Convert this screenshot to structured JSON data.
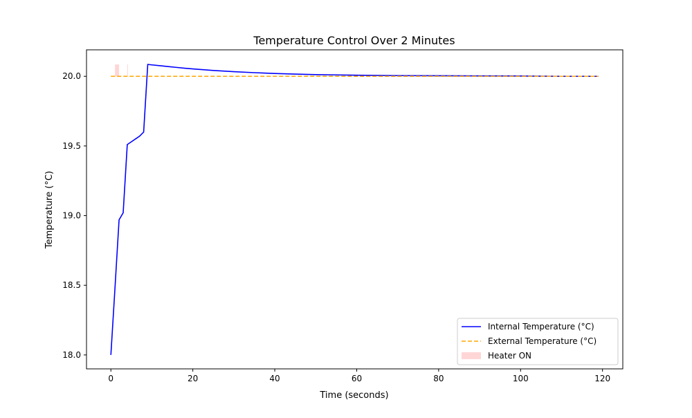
{
  "chart_data": {
    "type": "line",
    "title": "Temperature Control Over 2 Minutes",
    "xlabel": "Time (seconds)",
    "ylabel": "Temperature (°C)",
    "xlim": [
      -5.95,
      124.95
    ],
    "ylim": [
      17.9,
      20.19
    ],
    "x_ticks": [
      0,
      20,
      40,
      60,
      80,
      100,
      120
    ],
    "y_ticks": [
      18.0,
      18.5,
      19.0,
      19.5,
      20.0
    ],
    "x_tick_labels": [
      "0",
      "20",
      "40",
      "60",
      "80",
      "100",
      "120"
    ],
    "y_tick_labels": [
      "18.0",
      "18.5",
      "19.0",
      "19.5",
      "20.0"
    ],
    "grid": false,
    "legend_position": "lower-right",
    "series": [
      {
        "name": "Internal Temperature (°C)",
        "style": "solid",
        "color": "#0000ff",
        "x": [
          0,
          1,
          2,
          3,
          4,
          5,
          6,
          7,
          8,
          9,
          10,
          12,
          14,
          16,
          18,
          20,
          25,
          30,
          35,
          40,
          45,
          50,
          55,
          60,
          70,
          80,
          90,
          100,
          110,
          119
        ],
        "y": [
          18.0,
          18.48,
          18.97,
          19.02,
          19.51,
          19.53,
          19.55,
          19.57,
          19.6,
          20.085,
          20.082,
          20.076,
          20.07,
          20.064,
          20.058,
          20.053,
          20.042,
          20.033,
          20.026,
          20.02,
          20.016,
          20.012,
          20.01,
          20.008,
          20.005,
          20.004,
          20.003,
          20.002,
          20.0,
          20.0
        ]
      },
      {
        "name": "External Temperature (°C)",
        "style": "dashed",
        "color": "#ffa500",
        "x": [
          0,
          119
        ],
        "y": [
          20.0,
          20.0
        ]
      }
    ],
    "heater_on": {
      "name": "Heater ON",
      "color": "#ff9999",
      "intervals": [
        [
          1,
          2
        ],
        [
          4,
          4.15
        ]
      ],
      "y_range": [
        20.0,
        20.085
      ]
    }
  }
}
